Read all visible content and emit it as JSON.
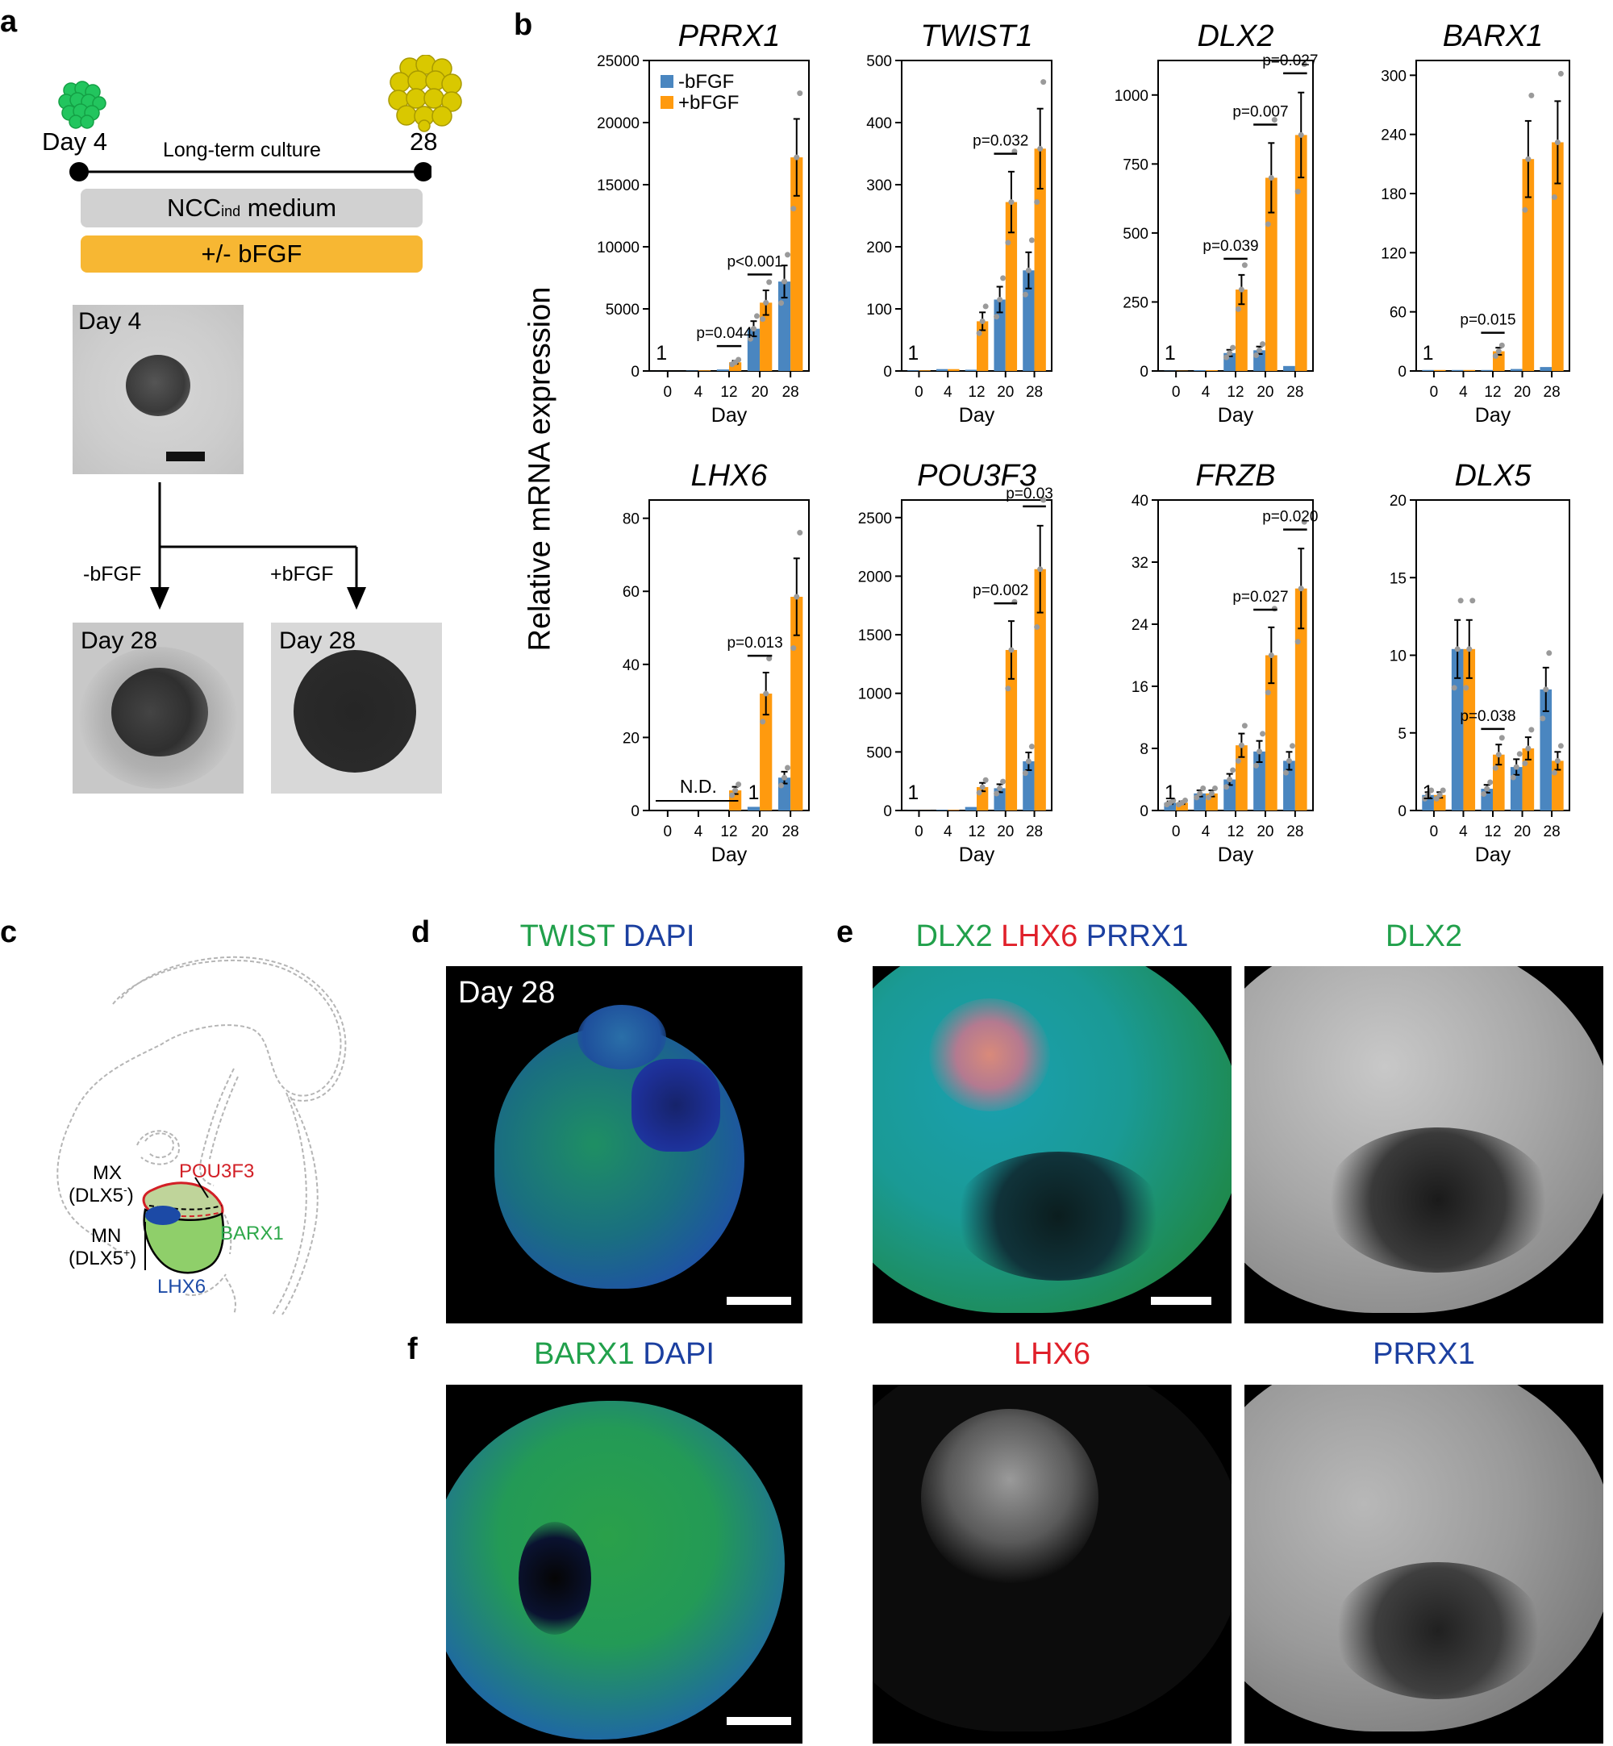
{
  "panel_labels": {
    "a": "a",
    "b": "b",
    "c": "c",
    "d": "d",
    "e": "e",
    "f": "f"
  },
  "panel_a": {
    "day_start": "Day 4",
    "day_end": "28",
    "timeline_label": "Long-term culture",
    "medium_label_main": "NCC",
    "medium_label_sub": "ind",
    "medium_label_rest": " medium",
    "bfgf_label": "+/- bFGF",
    "micro_day4": "Day 4",
    "minus_bfgf": "-bFGF",
    "plus_bfgf": "+bFGF",
    "micro_day28_a": "Day 28",
    "micro_day28_b": "Day 28",
    "colors": {
      "green": "#22c55e",
      "yellow": "#d4c400",
      "gray_bar": "#d1d1d1",
      "orange_bar": "#f7b733"
    }
  },
  "panel_b": {
    "ylabel": "Relative mRNA expression",
    "xlabel": "Day",
    "legend": [
      "-bFGF",
      "+bFGF"
    ],
    "colors": {
      "minus": "#4a86c0",
      "plus": "#ff9a0e"
    }
  },
  "chart_data": [
    {
      "type": "bar",
      "title": "PRRX1",
      "categories": [
        "0",
        "4",
        "12",
        "20",
        "28"
      ],
      "ylim": [
        0,
        25000
      ],
      "yticks": [
        0,
        5000,
        10000,
        15000,
        20000,
        25000
      ],
      "ytick_labels": [
        "0",
        "5000",
        "10000",
        "15000",
        "20000",
        "25000"
      ],
      "series": [
        {
          "name": "-bFGF",
          "values": [
            1,
            30,
            120,
            3400,
            7200
          ]
        },
        {
          "name": "+bFGF",
          "values": [
            1,
            50,
            700,
            5500,
            17200
          ]
        }
      ],
      "annotations": [
        {
          "text": "1",
          "cat": 0
        },
        {
          "text": "p=0.044",
          "cat": 2
        },
        {
          "text": "p<0.001",
          "cat": 3
        }
      ]
    },
    {
      "type": "bar",
      "title": "TWIST1",
      "categories": [
        "0",
        "4",
        "12",
        "20",
        "28"
      ],
      "ylim": [
        0,
        500
      ],
      "yticks": [
        0,
        100,
        200,
        300,
        400,
        500
      ],
      "ytick_labels": [
        "0",
        "100",
        "200",
        "300",
        "400",
        "500"
      ],
      "series": [
        {
          "name": "-bFGF",
          "values": [
            1,
            3,
            2,
            115,
            162
          ]
        },
        {
          "name": "+bFGF",
          "values": [
            1,
            3,
            80,
            272,
            358
          ]
        }
      ],
      "annotations": [
        {
          "text": "1",
          "cat": 0
        },
        {
          "text": "p=0.032",
          "cat": 3
        }
      ]
    },
    {
      "type": "bar",
      "title": "DLX2",
      "categories": [
        "0",
        "4",
        "12",
        "20",
        "28"
      ],
      "ylim": [
        0,
        1125
      ],
      "yticks": [
        0,
        250,
        500,
        750,
        1000
      ],
      "ytick_labels": [
        "0",
        "250",
        "500",
        "750",
        "1000"
      ],
      "series": [
        {
          "name": "-bFGF",
          "values": [
            1,
            3,
            65,
            75,
            18
          ]
        },
        {
          "name": "+bFGF",
          "values": [
            1,
            3,
            295,
            700,
            855
          ]
        }
      ],
      "annotations": [
        {
          "text": "1",
          "cat": 0
        },
        {
          "text": "p=0.039",
          "cat": 2
        },
        {
          "text": "p=0.007",
          "cat": 3
        },
        {
          "text": "p=0.027",
          "cat": 4
        }
      ]
    },
    {
      "type": "bar",
      "title": "BARX1",
      "categories": [
        "0",
        "4",
        "12",
        "20",
        "28"
      ],
      "ylim": [
        0,
        315
      ],
      "yticks": [
        0,
        60,
        120,
        180,
        240,
        300
      ],
      "ytick_labels": [
        "0",
        "60",
        "120",
        "180",
        "240",
        "300"
      ],
      "series": [
        {
          "name": "-bFGF",
          "values": [
            1,
            1,
            1,
            2,
            4
          ]
        },
        {
          "name": "+bFGF",
          "values": [
            1,
            1,
            20,
            215,
            232
          ]
        }
      ],
      "annotations": [
        {
          "text": "1",
          "cat": 0
        },
        {
          "text": "p=0.015",
          "cat": 2
        }
      ]
    },
    {
      "type": "bar",
      "title": "LHX6",
      "categories": [
        "0",
        "4",
        "12",
        "20",
        "28"
      ],
      "ylim": [
        0,
        85
      ],
      "yticks": [
        0,
        20,
        40,
        60,
        80
      ],
      "ytick_labels": [
        "0",
        "20",
        "40",
        "60",
        "80"
      ],
      "series": [
        {
          "name": "-bFGF",
          "values": [
            0,
            0,
            0,
            1,
            9
          ]
        },
        {
          "name": "+bFGF",
          "values": [
            0,
            0,
            5.5,
            32,
            58.5
          ]
        }
      ],
      "annotations": [
        {
          "text": "N.D.",
          "cat": 1
        },
        {
          "text": "1",
          "cat": 3
        },
        {
          "text": "p=0.013",
          "cat": 3
        }
      ]
    },
    {
      "type": "bar",
      "title": "POU3F3",
      "categories": [
        "0",
        "4",
        "12",
        "20",
        "28"
      ],
      "ylim": [
        0,
        2650
      ],
      "yticks": [
        0,
        500,
        1000,
        1500,
        2000,
        2500
      ],
      "ytick_labels": [
        "0",
        "500",
        "1000",
        "1500",
        "2000",
        "2500"
      ],
      "series": [
        {
          "name": "-bFGF",
          "values": [
            1,
            5,
            30,
            190,
            420
          ]
        },
        {
          "name": "+bFGF",
          "values": [
            1,
            5,
            200,
            1370,
            2060
          ]
        }
      ],
      "annotations": [
        {
          "text": "1",
          "cat": 0
        },
        {
          "text": "p=0.002",
          "cat": 3
        },
        {
          "text": "p=0.03",
          "cat": 4
        }
      ]
    },
    {
      "type": "bar",
      "title": "FRZB",
      "categories": [
        "0",
        "4",
        "12",
        "20",
        "28"
      ],
      "ylim": [
        0,
        40
      ],
      "yticks": [
        0,
        8,
        16,
        24,
        32,
        40
      ],
      "ytick_labels": [
        "0",
        "8",
        "16",
        "24",
        "32",
        "40"
      ],
      "series": [
        {
          "name": "-bFGF",
          "values": [
            1,
            2.2,
            4,
            7.6,
            6.4
          ]
        },
        {
          "name": "+bFGF",
          "values": [
            1,
            2.2,
            8.4,
            20,
            28.6
          ]
        }
      ],
      "annotations": [
        {
          "text": "1",
          "cat": 0
        },
        {
          "text": "p=0.027",
          "cat": 3
        },
        {
          "text": "p=0.020",
          "cat": 4
        }
      ]
    },
    {
      "type": "bar",
      "title": "DLX5",
      "categories": [
        "0",
        "4",
        "12",
        "20",
        "28"
      ],
      "ylim": [
        0,
        20
      ],
      "yticks": [
        0,
        5,
        10,
        15,
        20
      ],
      "ytick_labels": [
        "0",
        "5",
        "10",
        "15",
        "20"
      ],
      "series": [
        {
          "name": "-bFGF",
          "values": [
            1,
            10.4,
            1.4,
            2.8,
            7.8
          ]
        },
        {
          "name": "+bFGF",
          "values": [
            1,
            10.4,
            3.6,
            4,
            3.2
          ]
        }
      ],
      "annotations": [
        {
          "text": "1",
          "cat": 0
        },
        {
          "text": "p=0.038",
          "cat": 2
        }
      ]
    }
  ],
  "panel_c": {
    "mx": "MX",
    "mx_sub": "(DLX5",
    "mx_sup": "-",
    "mn": "MN",
    "mn_sub": "(DLX5",
    "mn_sup": "+",
    "close": ")",
    "pou3f3": "POU3F3",
    "barx1": "BARX1",
    "lhx6": "LHX6",
    "colors": {
      "red": "#d21f26",
      "green": "#2ea84a",
      "blue": "#1c4aa6"
    }
  },
  "panel_d": {
    "title_a": "TWIST",
    "title_b": "DAPI",
    "day_label": "Day 28"
  },
  "panel_e": {
    "title_a": "DLX2",
    "title_b": "LHX6",
    "title_c": "PRRX1",
    "gray_title": "DLX2"
  },
  "panel_f": {
    "title_a": "BARX1",
    "title_b": "DAPI",
    "gray_title_lhx6": "LHX6",
    "gray_title_prrx1": "PRRX1"
  },
  "title_colors": {
    "green": "#21a04b",
    "red": "#e0202a",
    "blue": "#1b3fa0"
  }
}
